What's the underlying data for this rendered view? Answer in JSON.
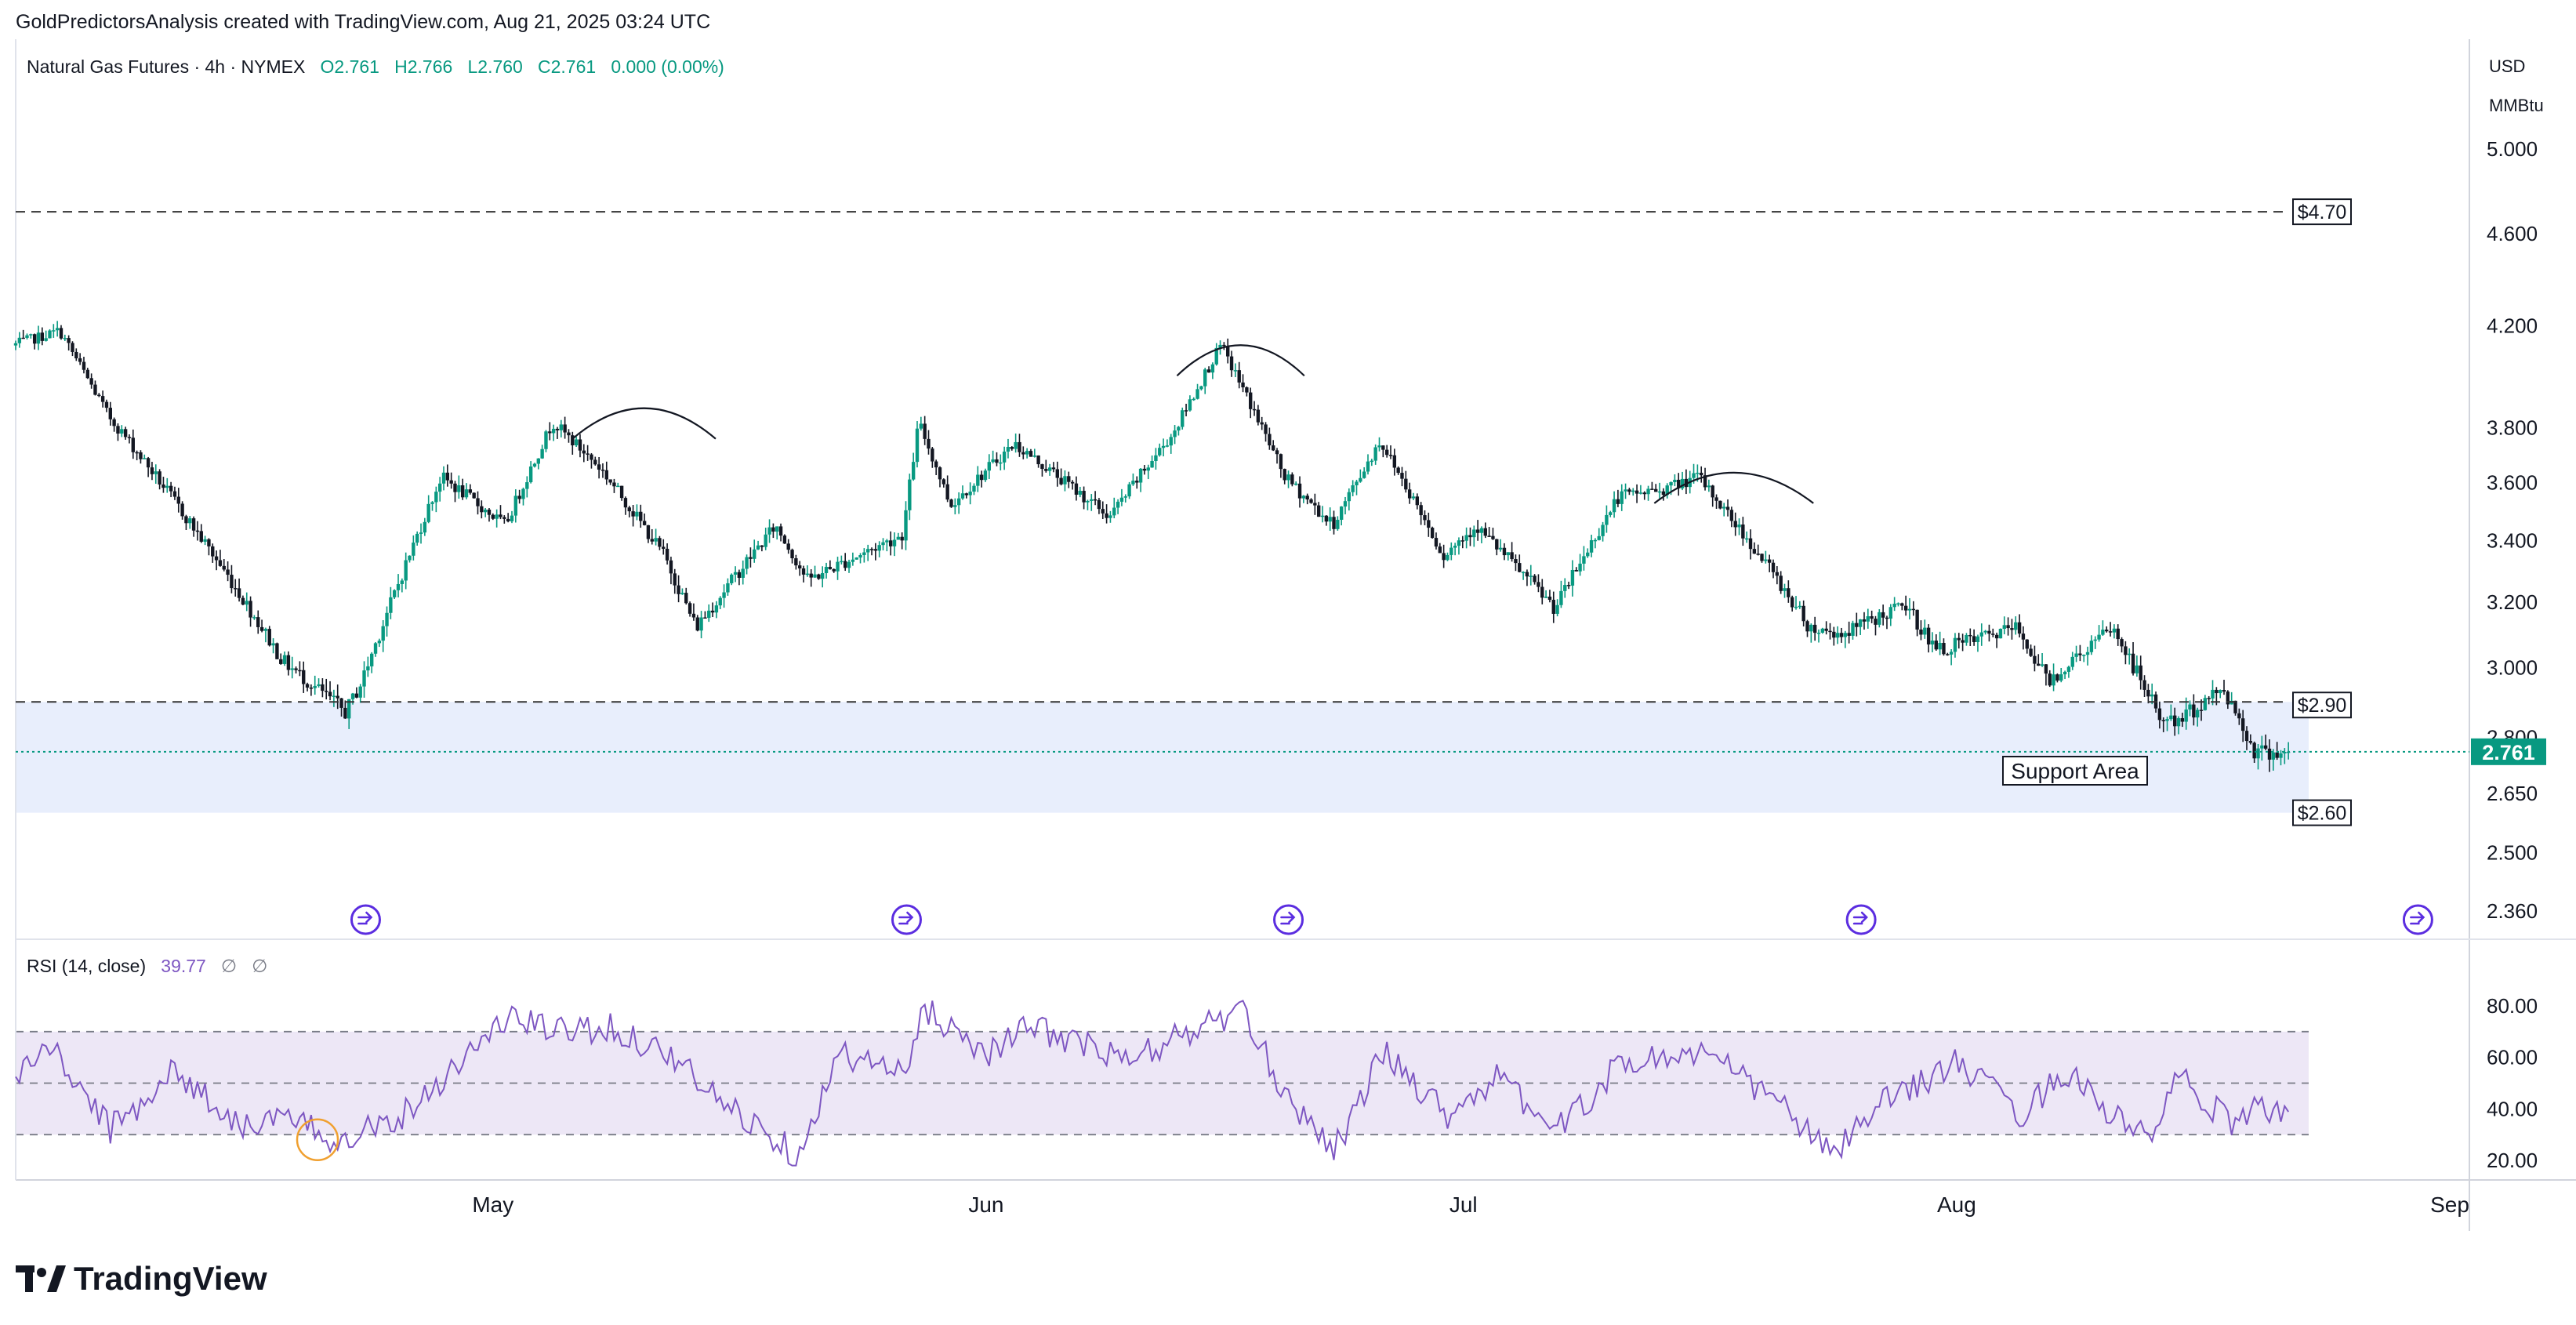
{
  "header": {
    "credit": "GoldPredictorsAnalysis created with TradingView.com, Aug 21, 2025 03:24 UTC"
  },
  "legend": {
    "symbol": "Natural Gas Futures · 4h · NYMEX",
    "open": "O2.761",
    "high": "H2.766",
    "low": "L2.760",
    "close": "C2.761",
    "change": "0.000 (0.00%)"
  },
  "price_axis": {
    "unit_line1": "USD",
    "unit_line2": "MMBtu",
    "ticks": [
      "5.000",
      "4.600",
      "4.200",
      "3.800",
      "3.600",
      "3.400",
      "3.200",
      "3.000",
      "2.800",
      "2.650",
      "2.500",
      "2.360"
    ],
    "current_price_label": "2.761"
  },
  "rsi_legend": {
    "title": "RSI (14, close)",
    "value": "39.77",
    "na1": "∅",
    "na2": "∅"
  },
  "rsi_axis": {
    "ticks": [
      "80.00",
      "60.00",
      "40.00",
      "20.00"
    ]
  },
  "time_axis": {
    "ticks": [
      "May",
      "Jun",
      "Jul",
      "Aug",
      "Sep"
    ]
  },
  "annotations": {
    "resistance_label": "$4.70",
    "support_top_label": "$2.90",
    "support_bottom_label": "$2.60",
    "support_area_label": "Support Area"
  },
  "brand": {
    "name": "TradingView"
  },
  "colors": {
    "up": "#089981",
    "down": "#131722",
    "rsi_line": "#7e57c2",
    "rsi_band": "#ede7f6",
    "support_zone": "#e8eefc",
    "current_price": "#089981",
    "highlight_circle": "#f0a030",
    "event_marker": "#5b2de0"
  },
  "chart_data": [
    {
      "type": "candlestick",
      "title": "Natural Gas Futures · 4h · NYMEX",
      "x_range": [
        "2025-04-01",
        "2025-09-01"
      ],
      "ylim": [
        2.3,
        5.2
      ],
      "log_scale": true,
      "grid": false,
      "waypoints": {
        "x": [
          "2025-04-01",
          "2025-04-04",
          "2025-04-07",
          "2025-04-11",
          "2025-04-15",
          "2025-04-18",
          "2025-04-22",
          "2025-04-23",
          "2025-04-25",
          "2025-04-28",
          "2025-05-02",
          "2025-05-05",
          "2025-05-08",
          "2025-05-12",
          "2025-05-14",
          "2025-05-19",
          "2025-05-21",
          "2025-05-27",
          "2025-05-28",
          "2025-05-30",
          "2025-06-03",
          "2025-06-09",
          "2025-06-13",
          "2025-06-16",
          "2025-06-20",
          "2025-06-23",
          "2025-06-26",
          "2025-06-30",
          "2025-07-02",
          "2025-07-07",
          "2025-07-11",
          "2025-07-14",
          "2025-07-16",
          "2025-07-21",
          "2025-07-23",
          "2025-07-25",
          "2025-07-29",
          "2025-07-31",
          "2025-08-05",
          "2025-08-07",
          "2025-08-11",
          "2025-08-14",
          "2025-08-15",
          "2025-08-18",
          "2025-08-20"
        ],
        "price": [
          4.12,
          4.18,
          3.85,
          3.55,
          3.25,
          3.02,
          2.87,
          2.96,
          3.22,
          3.62,
          3.45,
          3.82,
          3.65,
          3.35,
          3.12,
          3.45,
          3.27,
          3.42,
          3.82,
          3.52,
          3.74,
          3.48,
          3.78,
          4.12,
          3.62,
          3.45,
          3.75,
          3.35,
          3.45,
          3.18,
          3.55,
          3.58,
          3.62,
          3.27,
          3.12,
          3.1,
          3.19,
          3.05,
          3.12,
          2.96,
          3.12,
          2.86,
          2.84,
          2.94,
          2.761
        ]
      },
      "last": {
        "open": 2.761,
        "high": 2.766,
        "low": 2.76,
        "close": 2.761
      },
      "levels": [
        {
          "label": "$4.70",
          "value": 4.7,
          "style": "dashed"
        },
        {
          "label": "$2.90",
          "value": 2.9,
          "style": "dashed"
        },
        {
          "label": "$2.60",
          "value": 2.6,
          "style": "zone-bottom"
        }
      ],
      "zones": [
        {
          "label": "Support Area",
          "from": 2.6,
          "to": 2.9
        }
      ],
      "arcs": [
        {
          "from": "2025-05-06",
          "to": "2025-05-15",
          "peak": 3.9
        },
        {
          "from": "2025-06-13",
          "to": "2025-06-21",
          "peak": 4.15
        },
        {
          "from": "2025-07-13",
          "to": "2025-07-23",
          "peak": 3.66
        }
      ],
      "event_markers": [
        "2025-04-23",
        "2025-05-27",
        "2025-06-20",
        "2025-07-26",
        "2025-08-30"
      ]
    },
    {
      "type": "line",
      "title": "RSI (14, close)",
      "ylim": [
        17,
        84
      ],
      "bands": [
        30,
        50,
        70
      ],
      "waypoints": {
        "x": [
          "2025-04-01",
          "2025-04-03",
          "2025-04-07",
          "2025-04-11",
          "2025-04-15",
          "2025-04-18",
          "2025-04-21",
          "2025-04-23",
          "2025-04-25",
          "2025-05-02",
          "2025-05-05",
          "2025-05-08",
          "2025-05-12",
          "2025-05-15",
          "2025-05-19",
          "2025-05-20",
          "2025-05-23",
          "2025-05-27",
          "2025-05-28",
          "2025-06-01",
          "2025-06-04",
          "2025-06-10",
          "2025-06-13",
          "2025-06-17",
          "2025-06-20",
          "2025-06-23",
          "2025-06-26",
          "2025-06-30",
          "2025-07-03",
          "2025-07-07",
          "2025-07-11",
          "2025-07-16",
          "2025-07-21",
          "2025-07-24",
          "2025-07-28",
          "2025-08-01",
          "2025-08-05",
          "2025-08-08",
          "2025-08-11",
          "2025-08-13",
          "2025-08-15",
          "2025-08-18",
          "2025-08-20"
        ],
        "value": [
          52,
          65,
          32,
          55,
          34,
          36,
          28,
          33,
          36,
          76,
          70,
          72,
          62,
          44,
          28,
          22,
          62,
          52,
          80,
          62,
          72,
          58,
          68,
          78,
          44,
          25,
          62,
          38,
          52,
          32,
          58,
          62,
          42,
          22,
          45,
          58,
          38,
          55,
          36,
          28,
          52,
          35,
          40
        ]
      }
    }
  ]
}
